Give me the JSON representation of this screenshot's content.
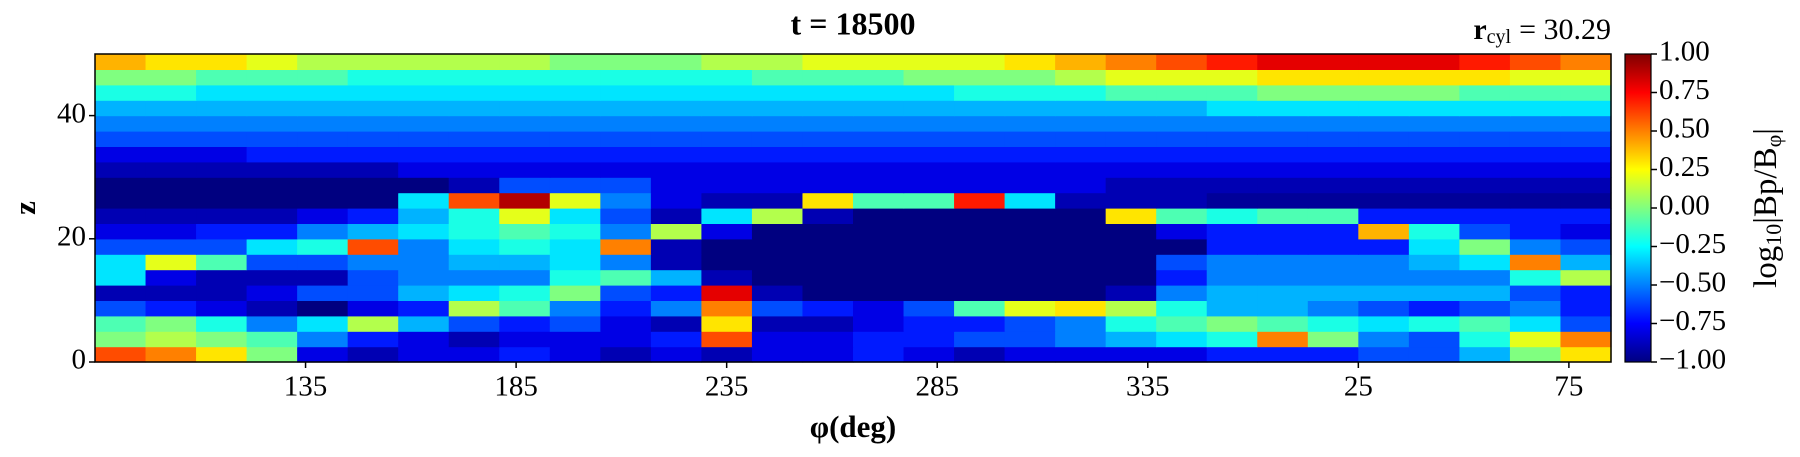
{
  "chart_data": {
    "type": "heatmap",
    "title": "t = 18500",
    "annotation": {
      "symbol": "r",
      "subscript": "cyl",
      "text": "= 30.29"
    },
    "x_label": "φ(deg)",
    "y_label": "z",
    "colorbar_label": {
      "prefix": "log",
      "subscript": "10",
      "text": "|Bp/B",
      "subscript2": "φ",
      "suffix": "|"
    },
    "colormap": "jet",
    "xlim": [
      85,
      445
    ],
    "xticks": [
      135,
      185,
      235,
      285,
      335,
      {
        "value": 385,
        "label": "25"
      },
      {
        "value": 435,
        "label": "75"
      }
    ],
    "ylim": [
      0,
      50
    ],
    "yticks": [
      0,
      20,
      40
    ],
    "clim": [
      -1,
      1
    ],
    "cticks": [
      {
        "value": -1,
        "label": "−1.00"
      },
      {
        "value": -0.75,
        "label": "−0.75"
      },
      {
        "value": -0.5,
        "label": "−0.50"
      },
      {
        "value": -0.25,
        "label": "−0.25"
      },
      {
        "value": 0,
        "label": "0.00"
      },
      {
        "value": 0.25,
        "label": "0.25"
      },
      {
        "value": 0.5,
        "label": "0.50"
      },
      {
        "value": 0.75,
        "label": "0.75"
      },
      {
        "value": 1,
        "label": "1.00"
      }
    ],
    "values": [
      [
        0.6,
        0.5,
        0.3,
        0.0,
        -0.8,
        -0.9,
        -0.8,
        -0.8,
        -0.7,
        -0.8,
        -0.9,
        -0.8,
        -0.9,
        -0.8,
        -0.8,
        -0.7,
        -0.8,
        -0.9,
        -0.8,
        -0.8,
        -0.8,
        -0.8,
        -0.7,
        -0.7,
        -0.7,
        -0.6,
        -0.6,
        -0.4,
        0.0,
        0.3
      ],
      [
        0.0,
        0.1,
        0.0,
        -0.1,
        -0.5,
        -0.7,
        -0.8,
        -0.9,
        -0.8,
        -0.8,
        -0.8,
        -0.7,
        0.6,
        -0.8,
        -0.8,
        -0.7,
        -0.7,
        -0.6,
        -0.6,
        -0.5,
        -0.4,
        -0.3,
        -0.2,
        0.5,
        0.0,
        -0.5,
        -0.6,
        -0.2,
        0.2,
        0.5
      ],
      [
        -0.1,
        0.0,
        -0.2,
        -0.5,
        -0.3,
        0.1,
        -0.4,
        -0.6,
        -0.7,
        -0.6,
        -0.8,
        -0.9,
        0.3,
        -0.9,
        -0.9,
        -0.8,
        -0.7,
        -0.7,
        -0.6,
        -0.5,
        -0.2,
        -0.1,
        0.0,
        -0.1,
        -0.2,
        -0.3,
        -0.2,
        -0.1,
        -0.3,
        -0.6
      ],
      [
        -0.6,
        -0.7,
        -0.8,
        -0.9,
        -1.0,
        -0.8,
        -0.7,
        0.1,
        -0.1,
        -0.5,
        -0.7,
        -0.5,
        0.5,
        -0.6,
        -0.7,
        -0.8,
        -0.6,
        -0.1,
        0.2,
        0.3,
        0.1,
        -0.2,
        -0.4,
        -0.4,
        -0.5,
        -0.6,
        -0.7,
        -0.6,
        -0.5,
        -0.7
      ],
      [
        -0.9,
        -0.9,
        -0.9,
        -0.8,
        -0.6,
        -0.6,
        -0.4,
        -0.3,
        -0.2,
        0.0,
        -0.6,
        -0.7,
        0.8,
        -0.9,
        -1.0,
        -1.0,
        -1.0,
        -1.0,
        -1.0,
        -1.0,
        -0.9,
        -0.5,
        -0.4,
        -0.4,
        -0.4,
        -0.4,
        -0.4,
        -0.4,
        -0.6,
        -0.7
      ],
      [
        -0.3,
        -0.8,
        -0.9,
        -0.9,
        -0.9,
        -0.6,
        -0.5,
        -0.5,
        -0.5,
        -0.2,
        -0.1,
        -0.4,
        -0.9,
        -1.0,
        -1.0,
        -1.0,
        -1.0,
        -1.0,
        -1.0,
        -1.0,
        -1.0,
        -0.7,
        -0.5,
        -0.5,
        -0.5,
        -0.5,
        -0.5,
        -0.5,
        -0.2,
        0.1
      ],
      [
        -0.3,
        0.2,
        -0.1,
        -0.6,
        -0.6,
        -0.5,
        -0.5,
        -0.4,
        -0.4,
        -0.3,
        -0.5,
        -0.9,
        -1.0,
        -1.0,
        -1.0,
        -1.0,
        -1.0,
        -1.0,
        -1.0,
        -1.0,
        -1.0,
        -0.6,
        -0.5,
        -0.5,
        -0.5,
        -0.5,
        -0.4,
        -0.3,
        0.5,
        -0.4
      ],
      [
        -0.6,
        -0.6,
        -0.6,
        -0.3,
        -0.2,
        0.6,
        -0.5,
        -0.3,
        -0.2,
        -0.3,
        0.5,
        -0.9,
        -1.0,
        -1.0,
        -1.0,
        -1.0,
        -1.0,
        -1.0,
        -1.0,
        -1.0,
        -1.0,
        -1.0,
        -0.7,
        -0.7,
        -0.7,
        -0.7,
        -0.3,
        0.0,
        -0.5,
        -0.6
      ],
      [
        -0.8,
        -0.8,
        -0.7,
        -0.7,
        -0.5,
        -0.4,
        -0.3,
        -0.2,
        -0.1,
        -0.2,
        -0.5,
        0.1,
        -0.8,
        -1.0,
        -1.0,
        -1.0,
        -1.0,
        -1.0,
        -1.0,
        -1.0,
        -1.0,
        -0.8,
        -0.7,
        -0.7,
        -0.7,
        0.4,
        -0.2,
        -0.6,
        -0.7,
        -0.8
      ],
      [
        -0.9,
        -0.9,
        -0.9,
        -0.9,
        -0.8,
        -0.7,
        -0.4,
        -0.2,
        0.2,
        -0.3,
        -0.6,
        -0.9,
        -0.3,
        0.1,
        -0.9,
        -1.0,
        -1.0,
        -1.0,
        -1.0,
        -1.0,
        0.3,
        -0.1,
        -0.2,
        -0.1,
        -0.1,
        -0.7,
        -0.7,
        -0.7,
        -0.7,
        -0.7
      ],
      [
        -1.0,
        -1.0,
        -1.0,
        -1.0,
        -1.0,
        -1.0,
        -0.3,
        0.6,
        0.9,
        0.2,
        -0.5,
        -0.8,
        -0.9,
        -0.9,
        0.3,
        -0.1,
        -0.1,
        0.7,
        -0.3,
        -0.9,
        -0.9,
        -0.9,
        -0.95,
        -0.95,
        -0.95,
        -0.95,
        -0.95,
        -0.95,
        -0.95,
        -0.95
      ],
      [
        -1.0,
        -1.0,
        -1.0,
        -1.0,
        -1.0,
        -1.0,
        -1.0,
        -0.9,
        -0.6,
        -0.6,
        -0.6,
        -0.8,
        -0.8,
        -0.8,
        -0.8,
        -0.8,
        -0.8,
        -0.8,
        -0.8,
        -0.8,
        -0.9,
        -0.9,
        -0.9,
        -0.9,
        -0.9,
        -0.9,
        -0.9,
        -0.9,
        -0.9,
        -0.9
      ],
      [
        -0.9,
        -0.9,
        -0.9,
        -0.9,
        -0.9,
        -0.9,
        -0.8,
        -0.8,
        -0.8,
        -0.8,
        -0.8,
        -0.8,
        -0.8,
        -0.8,
        -0.8,
        -0.8,
        -0.8,
        -0.8,
        -0.8,
        -0.8,
        -0.8,
        -0.8,
        -0.8,
        -0.8,
        -0.8,
        -0.8,
        -0.8,
        -0.8,
        -0.8,
        -0.8
      ],
      [
        -0.8,
        -0.8,
        -0.8,
        -0.7,
        -0.7,
        -0.7,
        -0.7,
        -0.7,
        -0.7,
        -0.7,
        -0.7,
        -0.7,
        -0.7,
        -0.7,
        -0.7,
        -0.7,
        -0.7,
        -0.7,
        -0.7,
        -0.7,
        -0.7,
        -0.7,
        -0.7,
        -0.7,
        -0.7,
        -0.7,
        -0.7,
        -0.7,
        -0.7,
        -0.7
      ],
      [
        -0.6,
        -0.6,
        -0.6,
        -0.6,
        -0.6,
        -0.6,
        -0.6,
        -0.6,
        -0.6,
        -0.6,
        -0.6,
        -0.6,
        -0.6,
        -0.6,
        -0.6,
        -0.6,
        -0.6,
        -0.6,
        -0.6,
        -0.6,
        -0.6,
        -0.6,
        -0.6,
        -0.6,
        -0.6,
        -0.6,
        -0.6,
        -0.6,
        -0.6,
        -0.6
      ],
      [
        -0.5,
        -0.5,
        -0.5,
        -0.5,
        -0.5,
        -0.5,
        -0.5,
        -0.5,
        -0.5,
        -0.5,
        -0.5,
        -0.5,
        -0.5,
        -0.5,
        -0.5,
        -0.5,
        -0.5,
        -0.5,
        -0.5,
        -0.5,
        -0.5,
        -0.5,
        -0.5,
        -0.5,
        -0.5,
        -0.5,
        -0.5,
        -0.5,
        -0.5,
        -0.5
      ],
      [
        -0.4,
        -0.4,
        -0.4,
        -0.4,
        -0.4,
        -0.4,
        -0.4,
        -0.4,
        -0.4,
        -0.4,
        -0.4,
        -0.4,
        -0.4,
        -0.4,
        -0.4,
        -0.4,
        -0.4,
        -0.4,
        -0.4,
        -0.4,
        -0.4,
        -0.4,
        -0.3,
        -0.3,
        -0.3,
        -0.3,
        -0.3,
        -0.3,
        -0.3,
        -0.3
      ],
      [
        -0.2,
        -0.2,
        -0.3,
        -0.3,
        -0.3,
        -0.3,
        -0.3,
        -0.3,
        -0.3,
        -0.3,
        -0.3,
        -0.3,
        -0.3,
        -0.3,
        -0.3,
        -0.3,
        -0.3,
        -0.2,
        -0.2,
        -0.2,
        -0.1,
        -0.1,
        -0.1,
        0.0,
        0.0,
        0.0,
        0.0,
        -0.1,
        -0.1,
        -0.1
      ],
      [
        0.0,
        0.0,
        -0.1,
        -0.1,
        -0.1,
        -0.2,
        -0.2,
        -0.2,
        -0.2,
        -0.2,
        -0.2,
        -0.2,
        -0.2,
        -0.1,
        -0.1,
        -0.1,
        0.0,
        0.0,
        0.0,
        0.1,
        0.2,
        0.2,
        0.2,
        0.3,
        0.3,
        0.3,
        0.3,
        0.3,
        0.2,
        0.2
      ],
      [
        0.4,
        0.3,
        0.3,
        0.2,
        0.1,
        0.1,
        0.1,
        0.1,
        0.1,
        0.0,
        0.0,
        0.0,
        0.1,
        0.1,
        0.2,
        0.2,
        0.2,
        0.2,
        0.3,
        0.4,
        0.5,
        0.6,
        0.7,
        0.8,
        0.8,
        0.8,
        0.8,
        0.7,
        0.6,
        0.5
      ]
    ]
  }
}
